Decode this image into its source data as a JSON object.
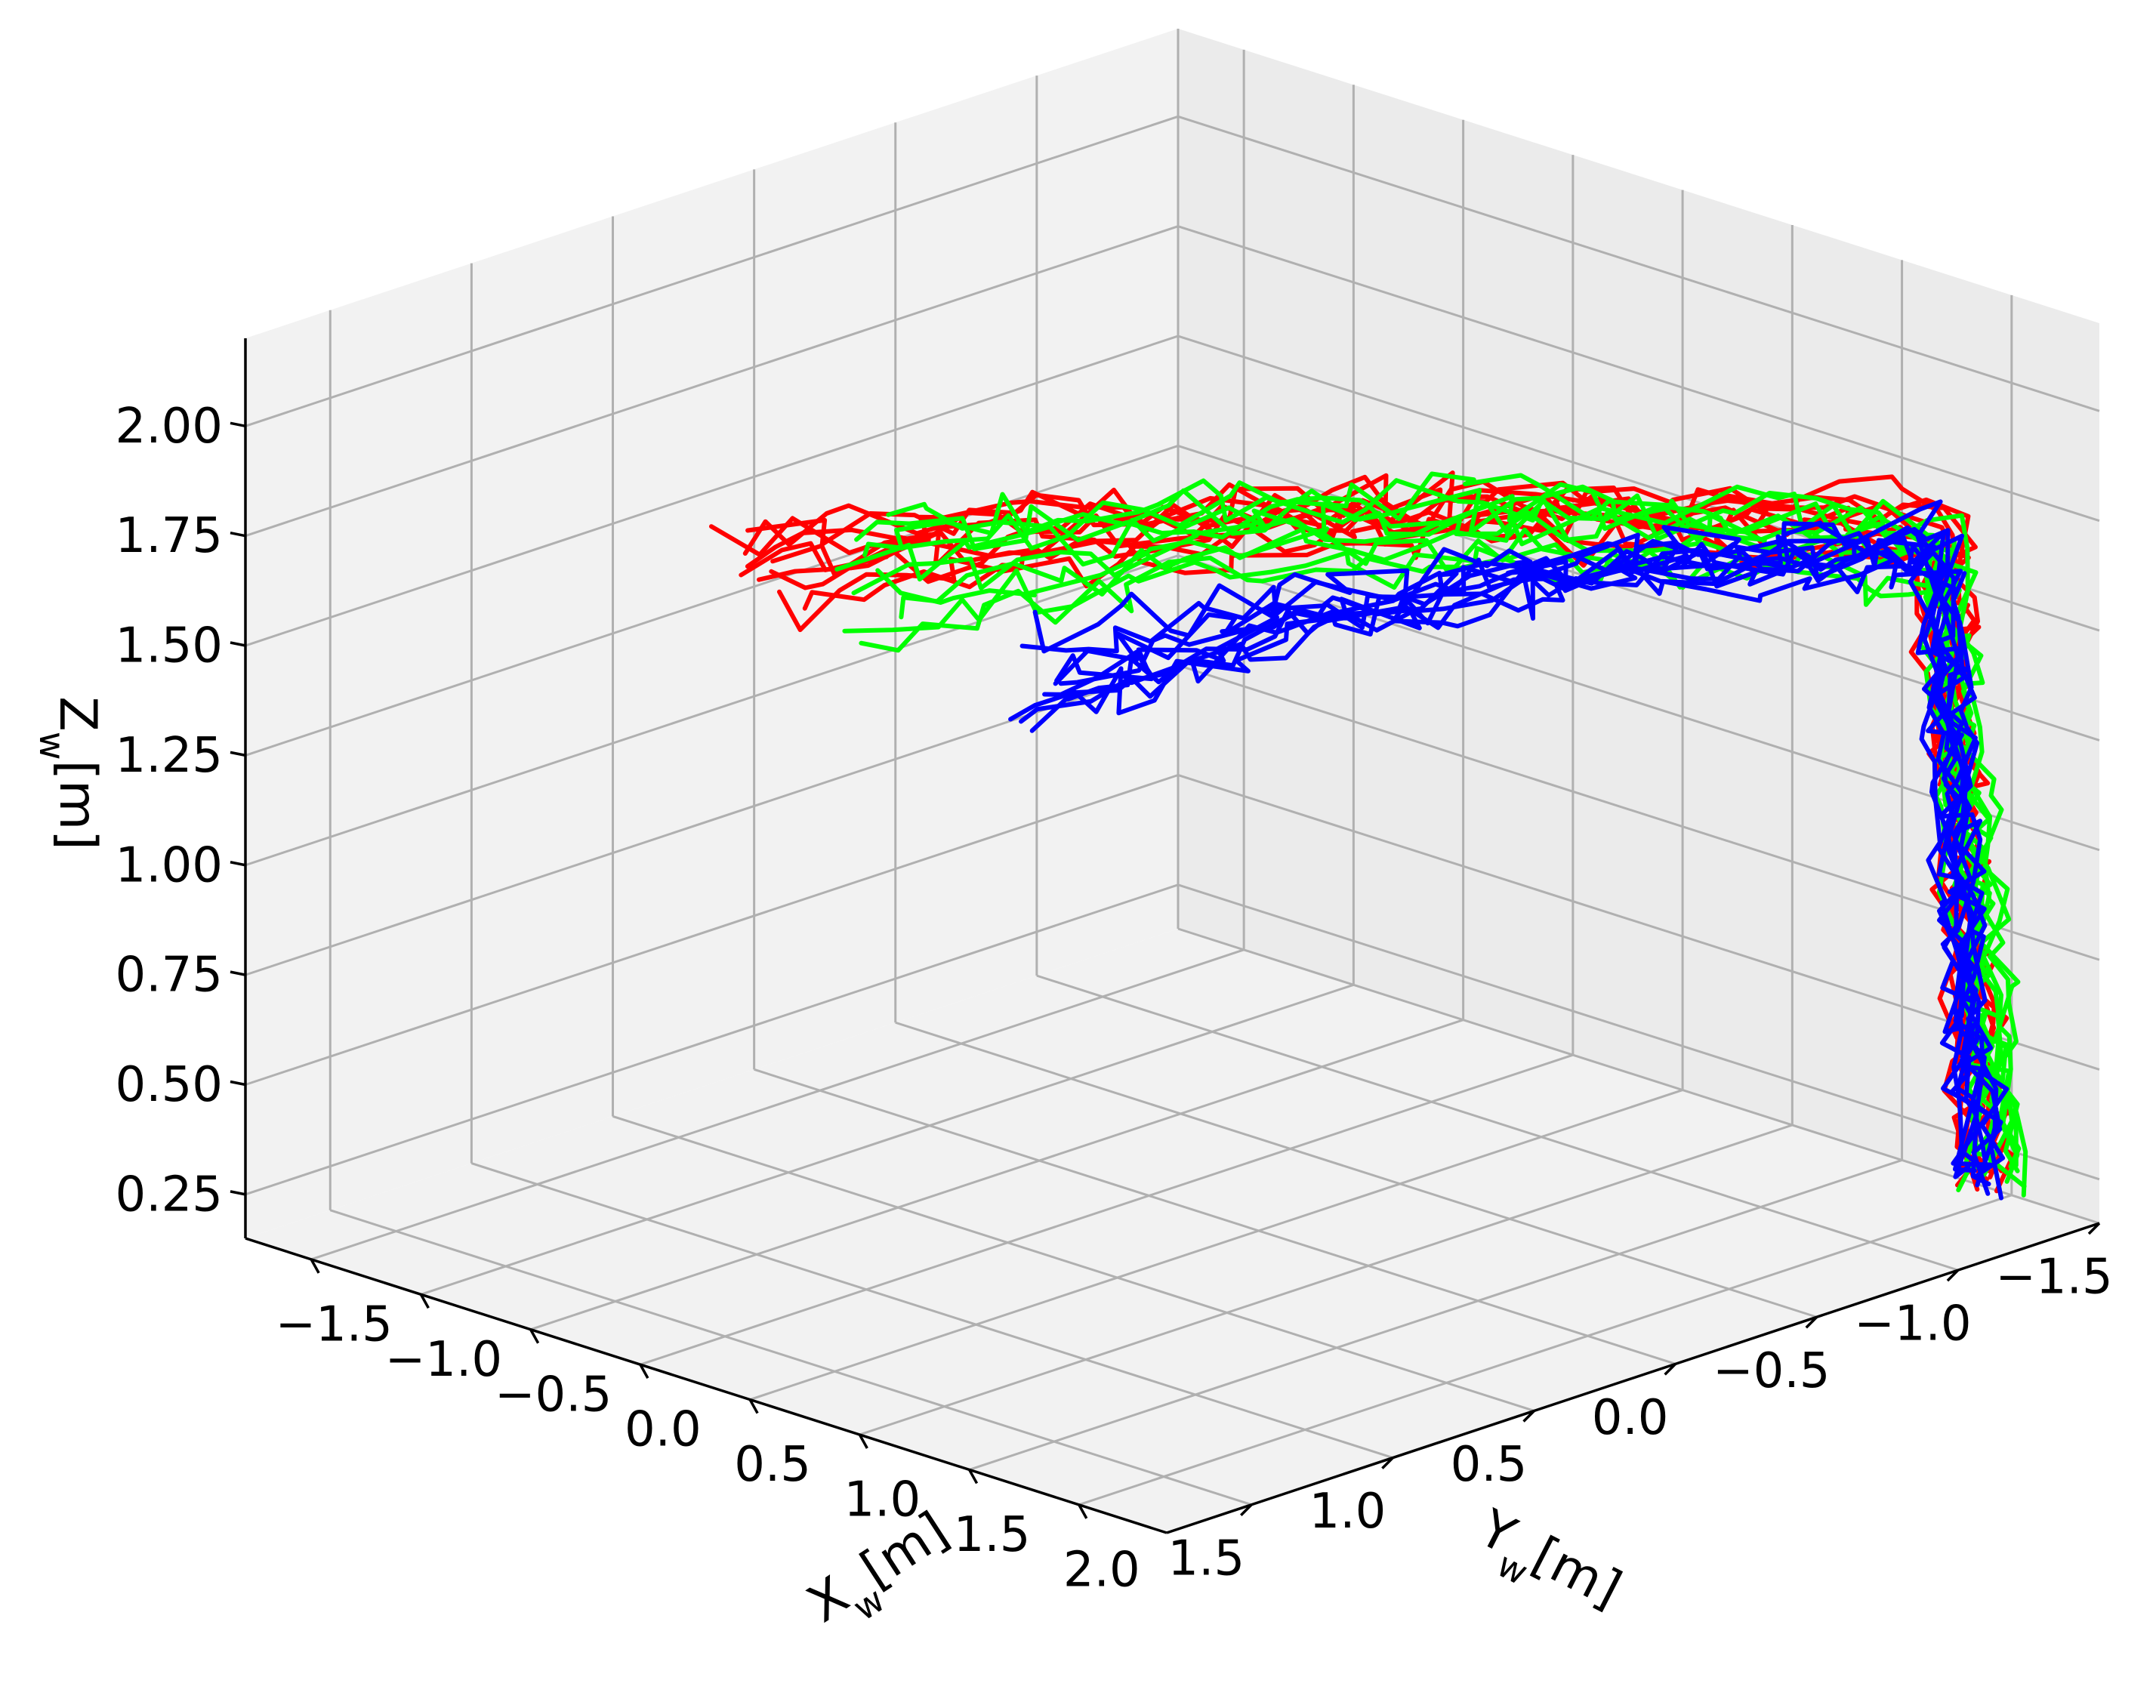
{
  "chart_data": {
    "type": "line",
    "projection": "3d",
    "title": "",
    "axes": {
      "x": {
        "label": "X",
        "label_sub": "w",
        "label_unit": "[m]",
        "range": [
          -1.8,
          2.4
        ],
        "ticks": [
          -1.5,
          -1.0,
          -0.5,
          0.0,
          0.5,
          1.0,
          1.5,
          2.0
        ],
        "tick_labels": [
          "−1.5",
          "−1.0",
          "−0.5",
          "0.0",
          "0.5",
          "1.0",
          "1.5",
          "2.0"
        ]
      },
      "y": {
        "label": "Y",
        "label_sub": "w",
        "label_unit": "[m]",
        "range": [
          -1.5,
          1.8
        ],
        "ticks": [
          -1.5,
          -1.0,
          -0.5,
          0.0,
          0.5,
          1.0,
          1.5
        ],
        "tick_labels": [
          "−1.5",
          "−1.0",
          "−0.5",
          "0.0",
          "0.5",
          "1.0",
          "1.5"
        ]
      },
      "z": {
        "label": "Z",
        "label_sub": "w",
        "label_unit": "[m]",
        "range": [
          0.15,
          2.2
        ],
        "ticks": [
          0.25,
          0.5,
          0.75,
          1.0,
          1.25,
          1.5,
          1.75,
          2.0
        ],
        "tick_labels": [
          "0.25",
          "0.50",
          "0.75",
          "1.00",
          "1.25",
          "1.50",
          "1.75",
          "2.00"
        ]
      }
    },
    "grid": true,
    "series": [
      {
        "color": "#ff0000",
        "end": [
          -0.15,
          1.3,
          1.85
        ],
        "bend": [
          1.95,
          -1.3,
          1.7
        ],
        "start": [
          2.0,
          -1.4,
          0.2
        ],
        "count": 10
      },
      {
        "color": "#00ff00",
        "end": [
          -0.5,
          0.6,
          1.6
        ],
        "bend": [
          1.95,
          -1.3,
          1.65
        ],
        "start": [
          2.0,
          -1.45,
          0.2
        ],
        "count": 10
      },
      {
        "color": "#0000ff",
        "end": [
          -0.6,
          -0.1,
          1.2
        ],
        "bend": [
          1.95,
          -1.3,
          1.65
        ],
        "start": [
          2.0,
          -1.4,
          0.2
        ],
        "count": 10
      }
    ]
  }
}
